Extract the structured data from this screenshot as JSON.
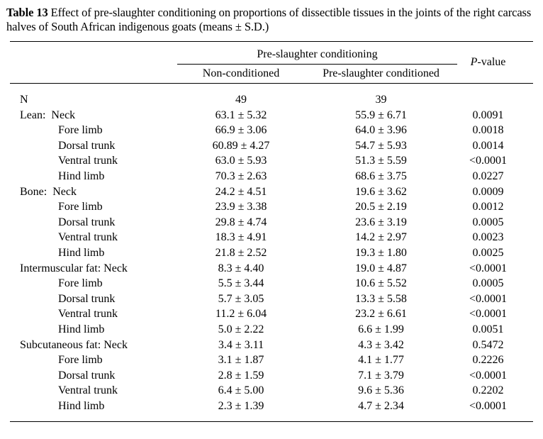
{
  "caption": {
    "label": "Table 13",
    "text": " Effect of pre-slaughter conditioning on proportions of dissectible tissues in the joints of the right carcass halves of South African indigenous goats (means ± S.D.)"
  },
  "table": {
    "group_header": "Pre-slaughter conditioning",
    "p_header": {
      "italic": "P",
      "rest": "-value"
    },
    "col_headers": [
      "Non-conditioned",
      "Pre-slaughter conditioned"
    ],
    "rows": [
      {
        "label": "N",
        "indent": false,
        "non_conditioned": "49",
        "conditioned": "39",
        "p_value": ""
      },
      {
        "label": "Lean:  Neck",
        "indent": false,
        "non_conditioned": "63.1 ± 5.32",
        "conditioned": "55.9 ± 6.71",
        "p_value": "0.0091"
      },
      {
        "label": "Fore limb",
        "indent": true,
        "non_conditioned": "66.9 ± 3.06",
        "conditioned": "64.0 ± 3.96",
        "p_value": "0.0018"
      },
      {
        "label": "Dorsal trunk",
        "indent": true,
        "non_conditioned": "60.89 ± 4.27",
        "conditioned": "54.7 ± 5.93",
        "p_value": "0.0014"
      },
      {
        "label": "Ventral trunk",
        "indent": true,
        "non_conditioned": "63.0 ± 5.93",
        "conditioned": "51.3 ± 5.59",
        "p_value": "<0.0001"
      },
      {
        "label": "Hind limb",
        "indent": true,
        "non_conditioned": "70.3 ± 2.63",
        "conditioned": "68.6 ± 3.75",
        "p_value": "0.0227"
      },
      {
        "label": "Bone:  Neck",
        "indent": false,
        "non_conditioned": "24.2 ± 4.51",
        "conditioned": "19.6 ± 3.62",
        "p_value": "0.0009"
      },
      {
        "label": "Fore limb",
        "indent": true,
        "non_conditioned": "23.9 ± 3.38",
        "conditioned": "20.5 ± 2.19",
        "p_value": "0.0012"
      },
      {
        "label": "Dorsal trunk",
        "indent": true,
        "non_conditioned": "29.8 ± 4.74",
        "conditioned": "23.6 ± 3.19",
        "p_value": "0.0005"
      },
      {
        "label": "Ventral trunk",
        "indent": true,
        "non_conditioned": "18.3 ± 4.91",
        "conditioned": "14.2 ± 2.97",
        "p_value": "0.0023"
      },
      {
        "label": "Hind limb",
        "indent": true,
        "non_conditioned": "21.8 ± 2.52",
        "conditioned": "19.3 ± 1.80",
        "p_value": "0.0025"
      },
      {
        "label": "Intermuscular fat: Neck",
        "indent": false,
        "non_conditioned": "8.3 ± 4.40",
        "conditioned": "19.0 ± 4.87",
        "p_value": "<0.0001"
      },
      {
        "label": "Fore limb",
        "indent": true,
        "non_conditioned": "5.5 ± 3.44",
        "conditioned": "10.6 ± 5.52",
        "p_value": "0.0005"
      },
      {
        "label": "Dorsal trunk",
        "indent": true,
        "non_conditioned": "5.7 ± 3.05",
        "conditioned": "13.3 ± 5.58",
        "p_value": "<0.0001"
      },
      {
        "label": "Ventral trunk",
        "indent": true,
        "non_conditioned": "11.2 ± 6.04",
        "conditioned": "23.2 ± 6.61",
        "p_value": "<0.0001"
      },
      {
        "label": "Hind limb",
        "indent": true,
        "non_conditioned": "5.0 ± 2.22",
        "conditioned": "6.6 ± 1.99",
        "p_value": "0.0051"
      },
      {
        "label": "Subcutaneous fat: Neck",
        "indent": false,
        "non_conditioned": "3.4 ± 3.11",
        "conditioned": "4.3 ± 3.42",
        "p_value": "0.5472"
      },
      {
        "label": "Fore limb",
        "indent": true,
        "non_conditioned": "3.1 ± 1.87",
        "conditioned": "4.1 ± 1.77",
        "p_value": "0.2226"
      },
      {
        "label": "Dorsal trunk",
        "indent": true,
        "non_conditioned": "2.8 ± 1.59",
        "conditioned": "7.1 ± 3.79",
        "p_value": "<0.0001"
      },
      {
        "label": "Ventral trunk",
        "indent": true,
        "non_conditioned": "6.4 ± 5.00",
        "conditioned": "9.6 ± 5.36",
        "p_value": "0.2202"
      },
      {
        "label": "Hind limb",
        "indent": true,
        "non_conditioned": "2.3 ± 1.39",
        "conditioned": "4.7 ± 2.34",
        "p_value": "<0.0001"
      }
    ]
  },
  "colors": {
    "text": "#000000",
    "background": "#ffffff",
    "rule": "#000000"
  }
}
